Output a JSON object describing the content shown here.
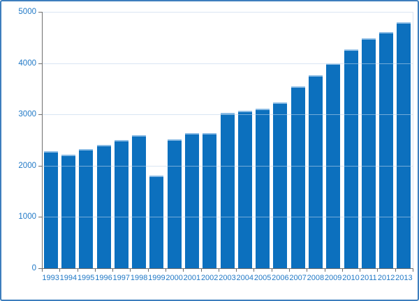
{
  "chart_data": {
    "type": "bar",
    "title": "",
    "xlabel": "",
    "ylabel": "",
    "categories": [
      "1993",
      "1994",
      "1995",
      "1996",
      "1997",
      "1998",
      "1999",
      "2000",
      "2001",
      "2002",
      "2003",
      "2004",
      "2005",
      "2006",
      "2007",
      "2008",
      "2009",
      "2010",
      "2011",
      "2012",
      "2013"
    ],
    "values": [
      2280,
      2210,
      2330,
      2400,
      2500,
      2590,
      1810,
      2510,
      2640,
      2640,
      3030,
      3070,
      3110,
      3230,
      3540,
      3770,
      4000,
      4260,
      4480,
      4600,
      4800
    ],
    "ylim": [
      0,
      5000
    ],
    "yticks": [
      0,
      1000,
      2000,
      3000,
      4000,
      5000
    ],
    "grid": "horizontal",
    "legend": "none",
    "colors": {
      "bar": "#0C70BE",
      "bar_top_edge": "#8BBCE5",
      "gridline": "#D9E5F3",
      "gridline_over_bars": "rgba(217,229,243,0.5)",
      "axis": "#6E6E6E",
      "labels": "#1F78C6",
      "frame_border": "#3D7EBD",
      "background": "#FFFFFF"
    }
  }
}
